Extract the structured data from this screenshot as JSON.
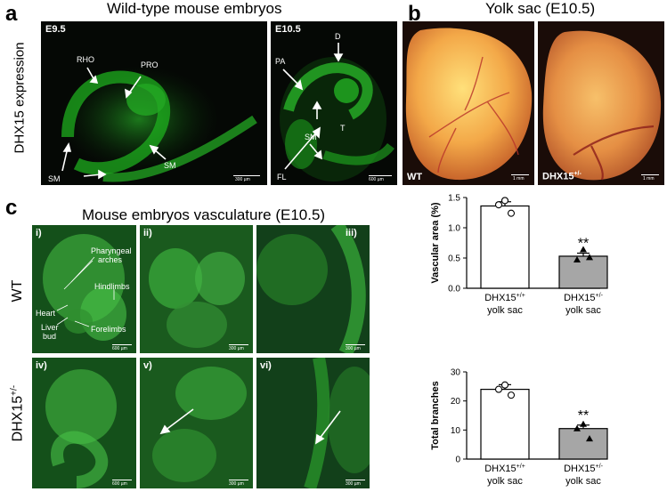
{
  "panels": {
    "a": {
      "letter": "a",
      "title": "Wild-type mouse embryos",
      "row_label": "DHX15 expression",
      "images": [
        {
          "stage": "E9.5",
          "labels": [
            "RHO",
            "PRO",
            "SM",
            "SM"
          ],
          "scale": "300 µm"
        },
        {
          "stage": "E10.5",
          "labels": [
            "D",
            "PA",
            "T",
            "SM",
            "FL"
          ],
          "scale": "600 µm"
        }
      ]
    },
    "b": {
      "letter": "b",
      "title": "Yolk sac (E10.5)",
      "images": [
        {
          "label": "WT",
          "scale": "1 mm"
        },
        {
          "label": "DHX15",
          "label_sup": "+/-",
          "scale": "1 mm"
        }
      ]
    },
    "c": {
      "letter": "c",
      "title": "Mouse embryos vasculature (E10.5)",
      "row_labels": [
        {
          "text": "WT",
          "sup": ""
        },
        {
          "text": "DHX15",
          "sup": "+/-"
        }
      ],
      "images": [
        {
          "tag": "i)",
          "scale": "600 µm",
          "annotations": [
            "Pharyngeal",
            "arches",
            "Hindlimbs",
            "Heart",
            "Liver",
            "bud",
            "Forelimbs"
          ]
        },
        {
          "tag": "ii)",
          "scale": "300 µm"
        },
        {
          "tag": "iii)",
          "scale": "300 µm"
        },
        {
          "tag": "iv)",
          "scale": "600 µm"
        },
        {
          "tag": "v)",
          "scale": "300 µm"
        },
        {
          "tag": "vi)",
          "scale": "300 µm"
        }
      ]
    }
  },
  "chart_data": [
    {
      "type": "bar",
      "ylabel": "Vascular area (%)",
      "ylim": [
        0,
        1.5
      ],
      "yticks": [
        "0.0",
        "0.5",
        "1.0",
        "1.5"
      ],
      "ytick_values": [
        0,
        0.5,
        1.0,
        1.5
      ],
      "categories": [
        {
          "line1": "DHX15",
          "sup": "+/+",
          "line2": "yolk sac"
        },
        {
          "line1": "DHX15",
          "sup": "+/-",
          "line2": "yolk sac"
        }
      ],
      "values": [
        1.36,
        0.53
      ],
      "errors": [
        0.07,
        0.05
      ],
      "points": [
        [
          1.45,
          1.38,
          1.24
        ],
        [
          0.64,
          0.47,
          0.51
        ]
      ],
      "significance": [
        "",
        "**"
      ],
      "bar_colors": [
        "#ffffff",
        "#a6a6a6"
      ]
    },
    {
      "type": "bar",
      "ylabel": "Total branches",
      "ylim": [
        0,
        30
      ],
      "yticks": [
        "0",
        "10",
        "20",
        "30"
      ],
      "ytick_values": [
        0,
        10,
        20,
        30
      ],
      "categories": [
        {
          "line1": "DHX15",
          "sup": "+/+",
          "line2": "yolk sac"
        },
        {
          "line1": "DHX15",
          "sup": "+/-",
          "line2": "yolk sac"
        }
      ],
      "values": [
        24,
        10.5
      ],
      "errors": [
        1.6,
        1.2
      ],
      "points": [
        [
          25.5,
          24,
          22
        ],
        [
          12,
          10.5,
          7
        ]
      ],
      "significance": [
        "",
        "**"
      ],
      "bar_colors": [
        "#ffffff",
        "#a6a6a6"
      ]
    }
  ]
}
